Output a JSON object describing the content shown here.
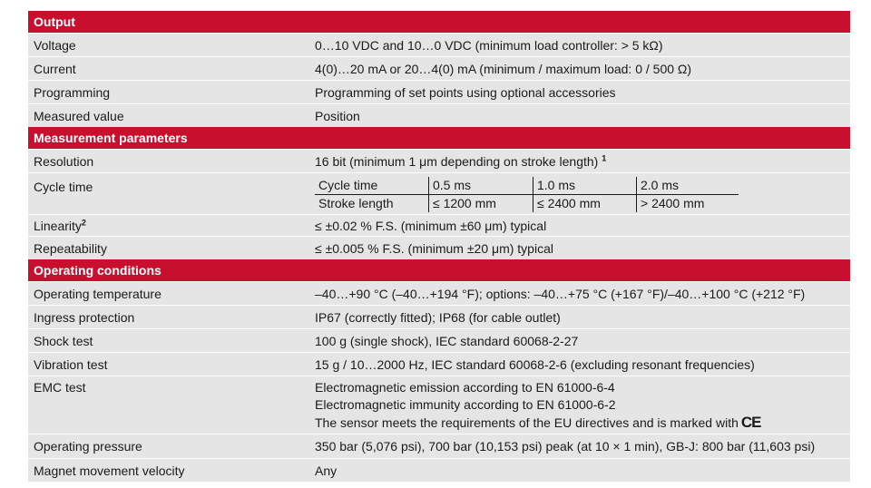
{
  "sections": {
    "output": "Output",
    "measurement": "Measurement parameters",
    "operating": "Operating conditions"
  },
  "output": {
    "voltage": {
      "label": "Voltage",
      "value": "0…10 VDC and 10…0 VDC (minimum load controller: > 5 kΩ)"
    },
    "current": {
      "label": "Current",
      "value": "4(0)…20 mA or 20…4(0) mA (minimum / maximum load: 0 / 500 Ω)"
    },
    "programming": {
      "label": "Programming",
      "value": "Programming of set points using optional accessories"
    },
    "measured": {
      "label": "Measured value",
      "value": "Position"
    }
  },
  "measurement": {
    "resolution": {
      "label": "Resolution",
      "value": "16 bit (minimum 1 μm depending on stroke length)",
      "note": "1"
    },
    "cycle": {
      "label": "Cycle time",
      "header": [
        "Cycle time",
        "0.5 ms",
        "1.0 ms",
        "2.0 ms"
      ],
      "stroke": [
        "Stroke length",
        "≤ 1200 mm",
        "≤ 2400 mm",
        "> 2400 mm"
      ]
    },
    "linearity": {
      "label": "Linearity",
      "note": "2",
      "value": "≤ ±0.02 % F.S. (minimum ±60 μm) typical"
    },
    "repeatability": {
      "label": "Repeatability",
      "value": "≤ ±0.005 % F.S. (minimum ±20 μm) typical"
    }
  },
  "operating": {
    "temperature": {
      "label": "Operating temperature",
      "value": "–40…+90 °C (–40…+194 °F); options: –40…+75 °C (+167 °F)/–40…+100 °C (+212 °F)"
    },
    "ingress": {
      "label": "Ingress protection",
      "value": "IP67 (correctly fitted); IP68 (for cable outlet)"
    },
    "shock": {
      "label": "Shock test",
      "value": "100 g (single shock), IEC standard 60068-2-27"
    },
    "vibration": {
      "label": "Vibration test",
      "value": "15 g / 10…2000 Hz, IEC standard 60068-2-6 (excluding resonant frequencies)"
    },
    "emc": {
      "label": "EMC test",
      "line1": "Electromagnetic emission according to EN 61000-6-4",
      "line2": "Electromagnetic immunity according to EN 61000-6-2",
      "line3": "The sensor meets the requirements of the EU directives and is marked with",
      "mark": "CE"
    },
    "pressure": {
      "label": "Operating pressure",
      "value": "350 bar (5,076 psi), 700 bar (10,153 psi) peak (at 10 × 1 min), GB-J: 800 bar (11,603 psi)"
    },
    "velocity": {
      "label": "Magnet movement velocity",
      "value": "Any"
    }
  },
  "colors": {
    "section_bg": "#c8102e",
    "row_bg": "#e5e5e5"
  }
}
